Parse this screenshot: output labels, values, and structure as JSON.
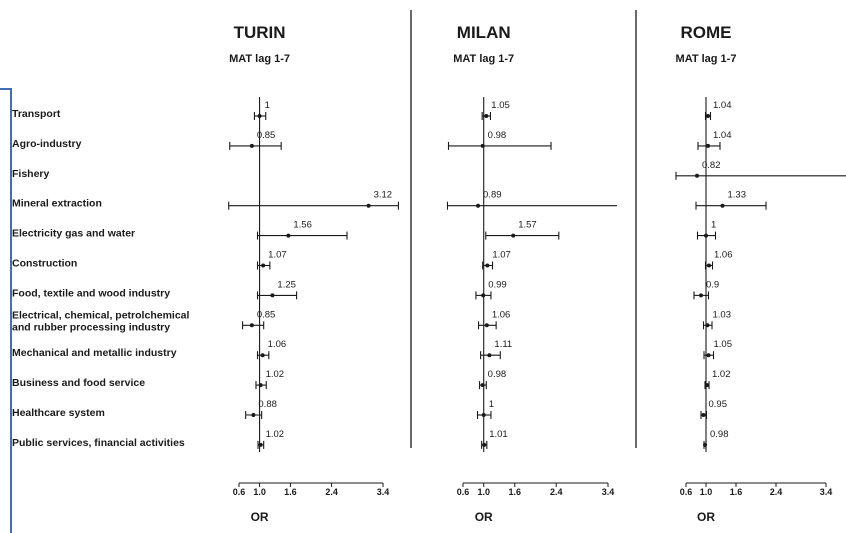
{
  "chart_data": {
    "type": "forest",
    "categories": [
      "Transport",
      "Agro-industry",
      "Fishery",
      "Mineral extraction",
      "Electricity gas and water",
      "Construction",
      "Food, textile and wood industry",
      [
        "Electrical, chemical, petrolchemical",
        "and rubber processing industry"
      ],
      "Mechanical and metallic industry",
      "Business and food service",
      "Healthcare system",
      "Public services, financial activities"
    ],
    "axis": {
      "ticks": [
        0.6,
        1.0,
        1.6,
        2.4,
        3.4
      ],
      "tick_labels": [
        "0.6",
        "1.0",
        "1.6",
        "2.4",
        "3.4"
      ],
      "xlabel": "OR",
      "reference_line": 1.0
    },
    "panels": [
      {
        "title": "TURIN",
        "subtitle": "MAT lag 1-7",
        "points": [
          {
            "or": 1.0,
            "lo": 0.9,
            "hi": 1.12,
            "label": "1"
          },
          {
            "or": 0.85,
            "lo": 0.42,
            "hi": 1.42,
            "label": "0.85"
          },
          null,
          {
            "or": 3.12,
            "lo": 0.4,
            "hi": 3.7,
            "label": "3.12"
          },
          {
            "or": 1.56,
            "lo": 0.96,
            "hi": 2.7,
            "label": "1.56"
          },
          {
            "or": 1.07,
            "lo": 0.96,
            "hi": 1.2,
            "label": "1.07"
          },
          {
            "or": 1.25,
            "lo": 0.96,
            "hi": 1.72,
            "label": "1.25"
          },
          {
            "or": 0.85,
            "lo": 0.67,
            "hi": 1.08,
            "label": "0.85"
          },
          {
            "or": 1.06,
            "lo": 0.96,
            "hi": 1.18,
            "label": "1.06"
          },
          {
            "or": 1.02,
            "lo": 0.93,
            "hi": 1.13,
            "label": "1.02"
          },
          {
            "or": 0.88,
            "lo": 0.73,
            "hi": 1.04,
            "label": "0.88"
          },
          {
            "or": 1.02,
            "lo": 0.97,
            "hi": 1.08,
            "label": "1.02"
          }
        ]
      },
      {
        "title": "MILAN",
        "subtitle": "MAT lag 1-7",
        "points": [
          {
            "or": 1.05,
            "lo": 0.97,
            "hi": 1.13,
            "label": "1.05"
          },
          {
            "or": 0.98,
            "lo": 0.32,
            "hi": 2.3,
            "label": "0.98"
          },
          null,
          {
            "or": 0.89,
            "lo": 0.3,
            "hi": 3.8,
            "label": "0.89"
          },
          {
            "or": 1.57,
            "lo": 1.04,
            "hi": 2.45,
            "label": "1.57"
          },
          {
            "or": 1.07,
            "lo": 0.98,
            "hi": 1.17,
            "label": "1.07"
          },
          {
            "or": 0.99,
            "lo": 0.85,
            "hi": 1.14,
            "label": "0.99"
          },
          {
            "or": 1.06,
            "lo": 0.9,
            "hi": 1.24,
            "label": "1.06"
          },
          {
            "or": 1.11,
            "lo": 0.94,
            "hi": 1.32,
            "label": "1.11"
          },
          {
            "or": 0.98,
            "lo": 0.92,
            "hi": 1.05,
            "label": "0.98"
          },
          {
            "or": 1.0,
            "lo": 0.88,
            "hi": 1.14,
            "label": "1"
          },
          {
            "or": 1.01,
            "lo": 0.96,
            "hi": 1.06,
            "label": "1.01"
          }
        ]
      },
      {
        "title": "ROME",
        "subtitle": "MAT lag 1-7",
        "points": [
          {
            "or": 1.04,
            "lo": 0.99,
            "hi": 1.09,
            "label": "1.04"
          },
          {
            "or": 1.04,
            "lo": 0.84,
            "hi": 1.28,
            "label": "1.04"
          },
          {
            "or": 0.82,
            "lo": 0.4,
            "hi": 3.9,
            "label": "0.82"
          },
          {
            "or": 1.33,
            "lo": 0.8,
            "hi": 2.2,
            "label": "1.33"
          },
          {
            "or": 1.0,
            "lo": 0.83,
            "hi": 1.19,
            "label": "1"
          },
          {
            "or": 1.06,
            "lo": 0.99,
            "hi": 1.13,
            "label": "1.06"
          },
          {
            "or": 0.9,
            "lo": 0.76,
            "hi": 1.05,
            "label": "0.9"
          },
          {
            "or": 1.03,
            "lo": 0.95,
            "hi": 1.12,
            "label": "1.03"
          },
          {
            "or": 1.05,
            "lo": 0.96,
            "hi": 1.15,
            "label": "1.05"
          },
          {
            "or": 1.02,
            "lo": 0.98,
            "hi": 1.06,
            "label": "1.02"
          },
          {
            "or": 0.95,
            "lo": 0.9,
            "hi": 1.01,
            "label": "0.95"
          },
          {
            "or": 0.98,
            "lo": 0.96,
            "hi": 1.0,
            "label": "0.98"
          }
        ]
      }
    ],
    "colors": {
      "ink": "#1a1a1a",
      "frame": "#3f6fb8"
    }
  }
}
